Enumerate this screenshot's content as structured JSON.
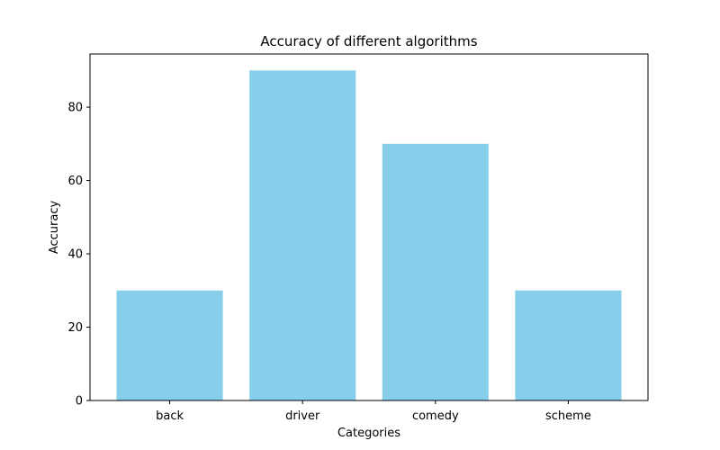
{
  "chart_data": {
    "type": "bar",
    "title": "Accuracy of different algorithms",
    "xlabel": "Categories",
    "ylabel": "Accuracy",
    "categories": [
      "back",
      "driver",
      "comedy",
      "scheme"
    ],
    "values": [
      30,
      90,
      70,
      30
    ],
    "ylim": [
      0,
      94.5
    ],
    "yticks": [
      0,
      20,
      40,
      60,
      80
    ],
    "bar_color": "#87ceeb",
    "grid": false,
    "legend": "none"
  }
}
